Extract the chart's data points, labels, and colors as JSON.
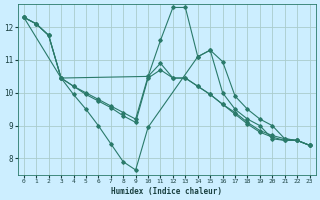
{
  "xlabel": "Humidex (Indice chaleur)",
  "background_color": "#cceeff",
  "line_color": "#2a7a6a",
  "grid_color": "#aacccc",
  "xlim": [
    -0.5,
    23.5
  ],
  "ylim": [
    7.5,
    12.7
  ],
  "yticks": [
    8,
    9,
    10,
    11,
    12
  ],
  "xticks": [
    0,
    1,
    2,
    3,
    4,
    5,
    6,
    7,
    8,
    9,
    10,
    11,
    12,
    13,
    14,
    15,
    16,
    17,
    18,
    19,
    20,
    21,
    22,
    23
  ],
  "lines": [
    {
      "x": [
        0,
        1,
        2,
        3,
        10,
        11,
        12,
        13,
        14,
        15,
        16,
        17,
        18,
        19,
        20,
        21,
        22,
        23
      ],
      "y": [
        12.3,
        12.1,
        11.75,
        10.45,
        10.5,
        11.6,
        12.6,
        12.6,
        11.1,
        11.3,
        10.95,
        9.9,
        9.5,
        9.2,
        9.0,
        8.6,
        8.55,
        8.4
      ]
    },
    {
      "x": [
        0,
        3,
        4,
        5,
        6,
        7,
        8,
        9,
        10,
        14,
        15,
        16,
        17,
        18,
        19,
        20,
        21,
        22,
        23
      ],
      "y": [
        12.3,
        10.45,
        9.95,
        9.5,
        9.0,
        8.45,
        7.9,
        7.65,
        8.95,
        11.1,
        11.3,
        10.0,
        9.5,
        9.2,
        9.0,
        8.6,
        8.55,
        8.55,
        8.4
      ]
    },
    {
      "x": [
        0,
        1,
        2,
        3,
        4,
        5,
        6,
        7,
        8,
        9,
        10,
        11,
        12,
        13,
        14,
        15,
        16,
        17,
        18,
        19,
        20,
        21,
        22,
        23
      ],
      "y": [
        12.3,
        12.1,
        11.75,
        10.45,
        10.2,
        10.0,
        9.8,
        9.6,
        9.4,
        9.2,
        10.5,
        10.9,
        10.45,
        10.45,
        10.2,
        9.95,
        9.65,
        9.4,
        9.1,
        8.85,
        8.7,
        8.6,
        8.55,
        8.4
      ]
    },
    {
      "x": [
        0,
        1,
        2,
        3,
        4,
        5,
        6,
        7,
        8,
        9,
        10,
        11,
        12,
        13,
        14,
        15,
        16,
        17,
        18,
        19,
        20,
        21,
        22,
        23
      ],
      "y": [
        12.3,
        12.1,
        11.75,
        10.45,
        10.2,
        9.95,
        9.75,
        9.55,
        9.3,
        9.1,
        10.45,
        10.7,
        10.45,
        10.45,
        10.2,
        9.95,
        9.65,
        9.35,
        9.05,
        8.8,
        8.65,
        8.55,
        8.55,
        8.4
      ]
    }
  ]
}
